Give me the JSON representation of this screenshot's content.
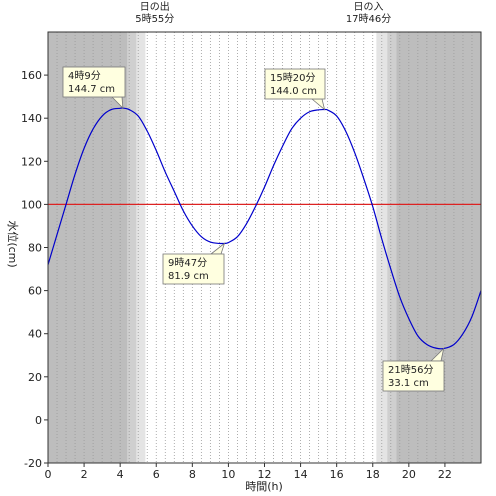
{
  "chart_data": {
    "type": "line",
    "xlabel": "時間(h)",
    "ylabel": "水位(cm)",
    "xlim": [
      0,
      24
    ],
    "ylim": [
      -20,
      180
    ],
    "x_ticks": [
      0,
      2,
      4,
      6,
      8,
      10,
      12,
      14,
      16,
      18,
      20,
      22
    ],
    "y_ticks": [
      -20,
      0,
      20,
      40,
      60,
      80,
      100,
      120,
      140,
      160
    ],
    "grid": "vertical dotted every 0.5 h",
    "reference_line": {
      "y": 100,
      "color": "#dd2222"
    },
    "series": [
      {
        "color": "#0000cc",
        "x": [
          0,
          0.5,
          1,
          1.5,
          2,
          2.5,
          3,
          3.5,
          4,
          4.15,
          4.5,
          5,
          5.5,
          6,
          6.5,
          7,
          7.5,
          8,
          8.5,
          9,
          9.5,
          9.78,
          10,
          10.5,
          11,
          11.5,
          12,
          12.5,
          13,
          13.5,
          14,
          14.5,
          15,
          15.33,
          15.5,
          16,
          16.5,
          17,
          17.5,
          18,
          18.5,
          19,
          19.5,
          20,
          20.5,
          21,
          21.5,
          21.93,
          22.5,
          23,
          23.5,
          24
        ],
        "y": [
          72,
          86,
          100,
          114,
          126,
          135,
          141,
          144,
          144.6,
          144.7,
          144,
          141,
          134,
          125,
          115,
          106,
          97,
          90,
          85,
          82.5,
          81.9,
          81.9,
          82.3,
          85,
          91,
          99,
          108,
          118,
          127,
          135,
          140,
          143,
          143.9,
          144.0,
          143.8,
          141,
          134,
          124,
          112,
          99,
          84,
          70,
          57,
          47,
          39,
          35,
          33.3,
          33.1,
          35,
          40,
          48,
          60
        ]
      }
    ],
    "annotations": [
      {
        "time": "4時9分",
        "level": "144.7 cm"
      },
      {
        "time": "9時47分",
        "level": "81.9 cm"
      },
      {
        "time": "15時20分",
        "level": "144.0 cm"
      },
      {
        "time": "21時56分",
        "level": "33.1 cm"
      }
    ],
    "events": [
      {
        "label": "日の出",
        "time": "5時55分",
        "hour": 5.917
      },
      {
        "label": "日の入",
        "time": "17時46分",
        "hour": 17.767
      }
    ],
    "shading": {
      "night": "#bdbdbd",
      "twilight_dark": "#cfcfcf",
      "twilight_light": "#e4e4e4",
      "day": "#ffffff",
      "bands": [
        {
          "from": 0,
          "to": 4.4,
          "tone": "night"
        },
        {
          "from": 4.4,
          "to": 4.9,
          "tone": "twilight_dark"
        },
        {
          "from": 4.9,
          "to": 5.4,
          "tone": "twilight_light"
        },
        {
          "from": 5.4,
          "to": 18.2,
          "tone": "day"
        },
        {
          "from": 18.2,
          "to": 18.8,
          "tone": "twilight_light"
        },
        {
          "from": 18.8,
          "to": 19.3,
          "tone": "twilight_dark"
        },
        {
          "from": 19.3,
          "to": 24,
          "tone": "night"
        }
      ]
    }
  }
}
